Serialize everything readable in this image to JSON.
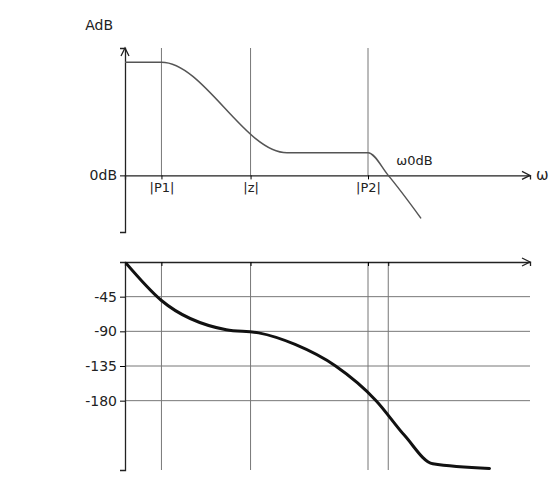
{
  "chart_data": [
    {
      "type": "line",
      "xlabel": "ω",
      "ylabel": "AdB",
      "x": [
        0,
        0.9,
        4,
        6,
        6.5,
        7.3
      ],
      "values": [
        40,
        40,
        8,
        8,
        0,
        -15
      ],
      "color": "#555555",
      "line_style": "solid",
      "xlim": [
        0,
        10
      ],
      "ylim": [
        -20,
        45
      ],
      "xticks": [
        {
          "value": 0.9,
          "label": "|P1|"
        },
        {
          "value": 3.1,
          "label": "|z|"
        },
        {
          "value": 6,
          "label": "|P2|"
        }
      ],
      "yticks": [
        {
          "value": 0,
          "label": "0dB"
        }
      ],
      "grid": "x",
      "annotations": [
        {
          "text": "ω0dB",
          "x": 6.5,
          "y": 0
        }
      ]
    },
    {
      "type": "line",
      "x": [
        0,
        0.9,
        2.5,
        3.3,
        4.2,
        5.2,
        6.2,
        6.9,
        7.6,
        9
      ],
      "values": [
        0,
        -50,
        -88,
        -92,
        -107,
        -135,
        -180,
        -225,
        -262,
        -268
      ],
      "color": "#111111",
      "line_style": "solid",
      "xlim": [
        0,
        10
      ],
      "ylim": [
        -270,
        0
      ],
      "xticks": [
        0.9,
        3.1,
        6,
        6.5
      ],
      "yticks": [
        -45,
        -90,
        -135,
        -180
      ],
      "grid": true,
      "tick_labels": "y"
    }
  ]
}
